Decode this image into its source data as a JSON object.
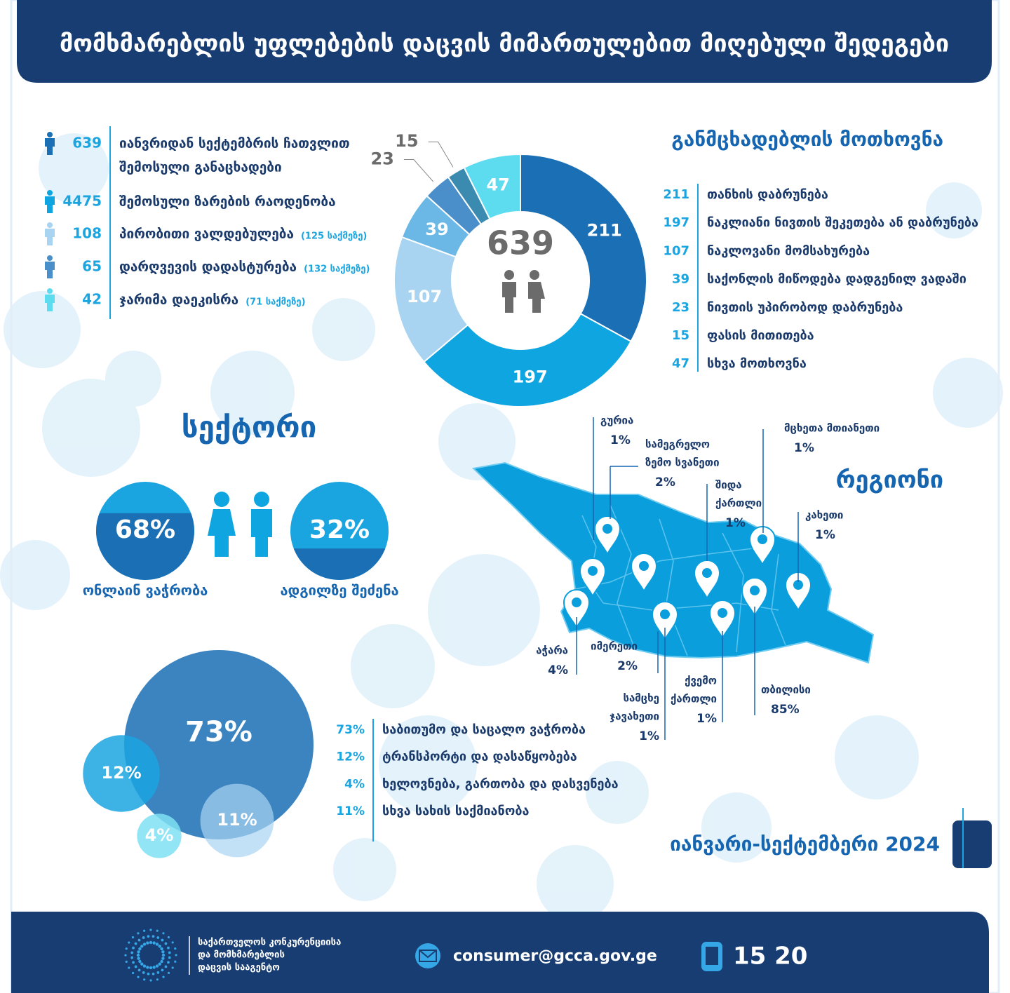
{
  "header": {
    "title": "მომხმარებლის უფლებების დაცვის მიმართულებით მიღებული შედეგები"
  },
  "stats": {
    "items": [
      {
        "value": 639,
        "text": [
          "იანვრიდან სექტემბრის ჩათვლით",
          "შემოსული განაცხადები"
        ]
      },
      {
        "value": 4475,
        "text": [
          "შემოსული ზარების რაოდენობა"
        ]
      },
      {
        "value": 108,
        "text": [
          "პირობითი ვალდებულება"
        ],
        "note": "(125 საქმეზე)"
      },
      {
        "value": 65,
        "text": [
          "დარღვევის დადასტურება"
        ],
        "note": "(132 საქმეზე)"
      },
      {
        "value": 42,
        "text": [
          "ჯარიმა დაეკისრა"
        ],
        "note": "(71 საქმეზე)"
      }
    ]
  },
  "requests": {
    "title": "განმცხადებლის მოთხოვნა",
    "items": [
      {
        "value": 211,
        "label": "თანხის დაბრუნება"
      },
      {
        "value": 197,
        "label": "ნაკლიანი ნივთის შეკეთება ან დაბრუნება"
      },
      {
        "value": 107,
        "label": "ნაკლოვანი მომსახურება"
      },
      {
        "value": 39,
        "label": "საქონლის მიწოდება დადგენილ ვადაში"
      },
      {
        "value": 23,
        "label": "ნივთის უპირობოდ დაბრუნება"
      },
      {
        "value": 15,
        "label": "ფასის მითითება"
      },
      {
        "value": 47,
        "label": "სხვა მოთხოვნა"
      }
    ]
  },
  "sector": {
    "title": "სექტორი",
    "items": [
      {
        "value": 68,
        "label": "68%",
        "text": "ონლაინ ვაჭრობა"
      },
      {
        "value": 32,
        "label": "32%",
        "text": "ადგილზე შეძენა"
      }
    ]
  },
  "region": {
    "title": "რეგიონი",
    "items": [
      {
        "name": [
          "გურია"
        ],
        "share": "1%"
      },
      {
        "name": [
          "სამეგრელო",
          "ზემო სვანეთი"
        ],
        "share": "2%"
      },
      {
        "name": [
          "მცხეთა მთიანეთი"
        ],
        "share": "1%"
      },
      {
        "name": [
          "შიდა",
          "ქართლი"
        ],
        "share": "1%"
      },
      {
        "name": [
          "კახეთი"
        ],
        "share": "1%"
      },
      {
        "name": [
          "აჭარა"
        ],
        "share": "4%"
      },
      {
        "name": [
          "იმერეთი"
        ],
        "share": "2%"
      },
      {
        "name": [
          "სამცხე",
          "ჯავახეთი"
        ],
        "share": "1%"
      },
      {
        "name": [
          "ქვემო",
          "ქართლი"
        ],
        "share": "1%"
      },
      {
        "name": [
          "თბილისი"
        ],
        "share": "85%"
      }
    ]
  },
  "activities": {
    "items": [
      {
        "value": 73,
        "label": "73%",
        "text": "საბითუმო და საცალო ვაჭრობა"
      },
      {
        "value": 12,
        "label": "12%",
        "text": "ტრანსპორტი და დასაწყობება"
      },
      {
        "value": 4,
        "label": "4%",
        "text": "ხელოვნება, გართობა და დასვენება"
      },
      {
        "value": 11,
        "label": "11%",
        "text": "სხვა სახის საქმიანობა"
      }
    ]
  },
  "period": "იანვარი-სექტემბერი 2024",
  "footer": {
    "agency": [
      "საქართველოს კონკურენციისა",
      "და მომხმარებლის",
      "დაცვის სააგენტო"
    ],
    "email": "consumer@gcca.gov.ge",
    "phone": "15 20"
  }
}
